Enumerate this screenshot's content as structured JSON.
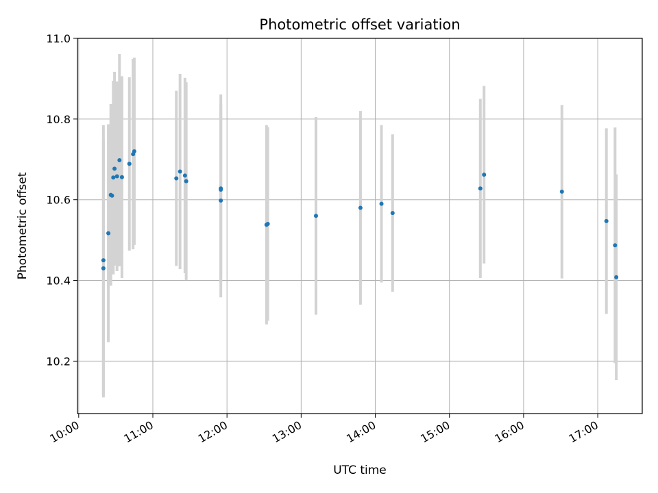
{
  "chart_data": {
    "type": "scatter",
    "title": "Photometric offset variation",
    "xlabel": "UTC time",
    "ylabel": "Photometric offset",
    "x_ticks": [
      "10:00",
      "11:00",
      "12:00",
      "13:00",
      "14:00",
      "15:00",
      "16:00",
      "17:00"
    ],
    "y_ticks": [
      "10.2",
      "10.4",
      "10.6",
      "10.8",
      "11.0"
    ],
    "xlim": [
      "09:59",
      "17:36"
    ],
    "ylim": [
      10.07,
      11.0
    ],
    "grid": true,
    "marker_color": "#1f77b4",
    "errorbar_color": "#d3d3d3",
    "points": [
      {
        "x": "10:20",
        "y": 10.45,
        "err": 0.335
      },
      {
        "x": "10:20",
        "y": 10.43,
        "err": 0.32
      },
      {
        "x": "10:24",
        "y": 10.517,
        "err": 0.27
      },
      {
        "x": "10:26",
        "y": 10.612,
        "err": 0.225
      },
      {
        "x": "10:27",
        "y": 10.61,
        "err": 0.175
      },
      {
        "x": "10:28",
        "y": 10.655,
        "err": 0.24
      },
      {
        "x": "10:29",
        "y": 10.677,
        "err": 0.24
      },
      {
        "x": "10:31",
        "y": 10.658,
        "err": 0.235
      },
      {
        "x": "10:33",
        "y": 10.698,
        "err": 0.263
      },
      {
        "x": "10:35",
        "y": 10.656,
        "err": 0.25
      },
      {
        "x": "10:41",
        "y": 10.689,
        "err": 0.215
      },
      {
        "x": "10:44",
        "y": 10.713,
        "err": 0.236
      },
      {
        "x": "10:45",
        "y": 10.72,
        "err": 0.232
      },
      {
        "x": "11:19",
        "y": 10.653,
        "err": 0.217
      },
      {
        "x": "11:22",
        "y": 10.67,
        "err": 0.242
      },
      {
        "x": "11:26",
        "y": 10.66,
        "err": 0.242
      },
      {
        "x": "11:27",
        "y": 10.646,
        "err": 0.245
      },
      {
        "x": "11:55",
        "y": 10.628,
        "err": 0.233
      },
      {
        "x": "11:55",
        "y": 10.625,
        "err": 0.212
      },
      {
        "x": "11:55",
        "y": 10.598,
        "err": 0.24
      },
      {
        "x": "12:32",
        "y": 10.538,
        "err": 0.247
      },
      {
        "x": "12:33",
        "y": 10.54,
        "err": 0.24
      },
      {
        "x": "13:12",
        "y": 10.56,
        "err": 0.245
      },
      {
        "x": "13:48",
        "y": 10.58,
        "err": 0.24
      },
      {
        "x": "14:05",
        "y": 10.59,
        "err": 0.195
      },
      {
        "x": "14:14",
        "y": 10.567,
        "err": 0.195
      },
      {
        "x": "15:25",
        "y": 10.628,
        "err": 0.222
      },
      {
        "x": "15:28",
        "y": 10.662,
        "err": 0.22
      },
      {
        "x": "16:31",
        "y": 10.62,
        "err": 0.215
      },
      {
        "x": "17:07",
        "y": 10.547,
        "err": 0.23
      },
      {
        "x": "17:14",
        "y": 10.487,
        "err": 0.292
      },
      {
        "x": "17:15",
        "y": 10.408,
        "err": 0.255
      }
    ]
  }
}
